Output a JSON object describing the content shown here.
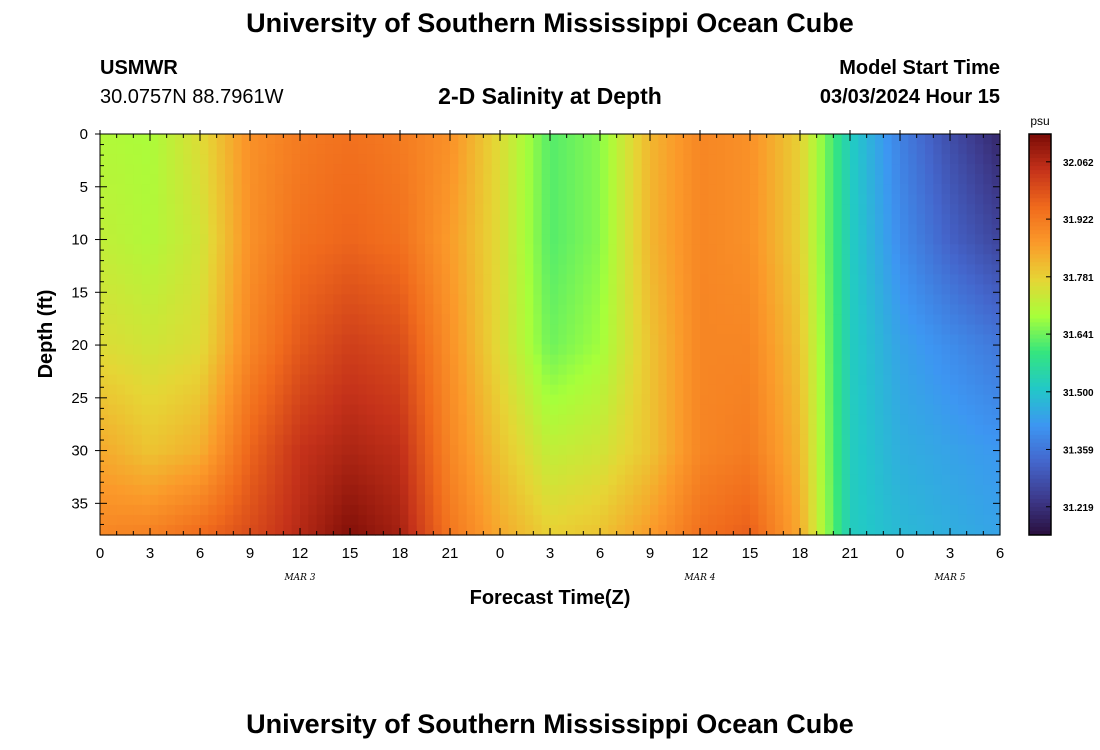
{
  "header": {
    "title": "University of Southern Mississippi Ocean Cube",
    "station": "USMWR",
    "coordinates": "30.0757N  88.7961W",
    "subtitle": "2-D Salinity at Depth",
    "model_start_label": "Model Start Time",
    "model_start_value": "03/03/2024 Hour 15"
  },
  "footer": {
    "title": "University of Southern Mississippi Ocean Cube"
  },
  "colors": {
    "scale": [
      "#2a0f3e",
      "#3d3a8c",
      "#4466cc",
      "#3d96f2",
      "#22c8c8",
      "#34e57f",
      "#a7ff3a",
      "#e6d535",
      "#fb9a2a",
      "#f06a1c",
      "#c5321a",
      "#7a0b06"
    ]
  },
  "chart_data": {
    "type": "heatmap",
    "xlabel": "Forecast Time(Z)",
    "ylabel": "Depth (ft)",
    "x_tick_labels": [
      "0",
      "3",
      "6",
      "9",
      "12",
      "15",
      "18",
      "21",
      "0",
      "3",
      "6",
      "9",
      "12",
      "15",
      "18",
      "21",
      "0",
      "3",
      "6"
    ],
    "day_labels": [
      {
        "label": "MAR 3",
        "hour": 12
      },
      {
        "label": "MAR 4",
        "hour": 36
      },
      {
        "label": "MAR 5",
        "hour": 51
      }
    ],
    "x_range_hours": [
      0,
      54
    ],
    "y_ticks": [
      0,
      5,
      10,
      15,
      20,
      25,
      30,
      35
    ],
    "y_range_ft": [
      0,
      38
    ],
    "colorbar": {
      "unit": "psu",
      "ticks": [
        "32.062",
        "31.922",
        "31.781",
        "31.641",
        "31.500",
        "31.359",
        "31.219"
      ],
      "range": [
        31.15,
        32.13
      ]
    },
    "value_range": [
      31.15,
      32.13
    ],
    "series": [
      {
        "hour": 0,
        "values": [
          31.7,
          31.72,
          31.76,
          31.84,
          31.9
        ]
      },
      {
        "hour": 3,
        "values": [
          31.69,
          31.7,
          31.74,
          31.8,
          31.91
        ]
      },
      {
        "hour": 6,
        "values": [
          31.76,
          31.74,
          31.76,
          31.83,
          31.95
        ]
      },
      {
        "hour": 9,
        "values": [
          31.88,
          31.88,
          31.9,
          31.96,
          32.0
        ]
      },
      {
        "hour": 12,
        "values": [
          31.92,
          31.94,
          31.98,
          32.04,
          32.06
        ]
      },
      {
        "hour": 15,
        "values": [
          31.94,
          31.96,
          32.02,
          32.07,
          32.12
        ]
      },
      {
        "hour": 18,
        "values": [
          31.92,
          31.94,
          32.0,
          32.05,
          32.08
        ]
      },
      {
        "hour": 21,
        "values": [
          31.88,
          31.86,
          31.88,
          31.9,
          31.93
        ]
      },
      {
        "hour": 24,
        "values": [
          31.76,
          31.76,
          31.76,
          31.8,
          31.84
        ]
      },
      {
        "hour": 27,
        "values": [
          31.62,
          31.62,
          31.64,
          31.72,
          31.78
        ]
      },
      {
        "hour": 30,
        "values": [
          31.66,
          31.66,
          31.68,
          31.74,
          31.8
        ]
      },
      {
        "hour": 33,
        "values": [
          31.82,
          31.82,
          31.8,
          31.8,
          31.86
        ]
      },
      {
        "hour": 36,
        "values": [
          31.9,
          31.9,
          31.9,
          31.9,
          31.94
        ]
      },
      {
        "hour": 39,
        "values": [
          31.88,
          31.88,
          31.9,
          31.92,
          31.97
        ]
      },
      {
        "hour": 42,
        "values": [
          31.78,
          31.78,
          31.8,
          31.82,
          31.84
        ]
      },
      {
        "hour": 45,
        "values": [
          31.52,
          31.52,
          31.52,
          31.52,
          31.52
        ]
      },
      {
        "hour": 48,
        "values": [
          31.38,
          31.4,
          31.44,
          31.46,
          31.48
        ]
      },
      {
        "hour": 51,
        "values": [
          31.28,
          31.32,
          31.4,
          31.44,
          31.46
        ]
      },
      {
        "hour": 54,
        "values": [
          31.2,
          31.26,
          31.36,
          31.42,
          31.44
        ]
      }
    ],
    "depth_levels_ft": [
      0,
      10,
      20,
      30,
      38
    ]
  }
}
